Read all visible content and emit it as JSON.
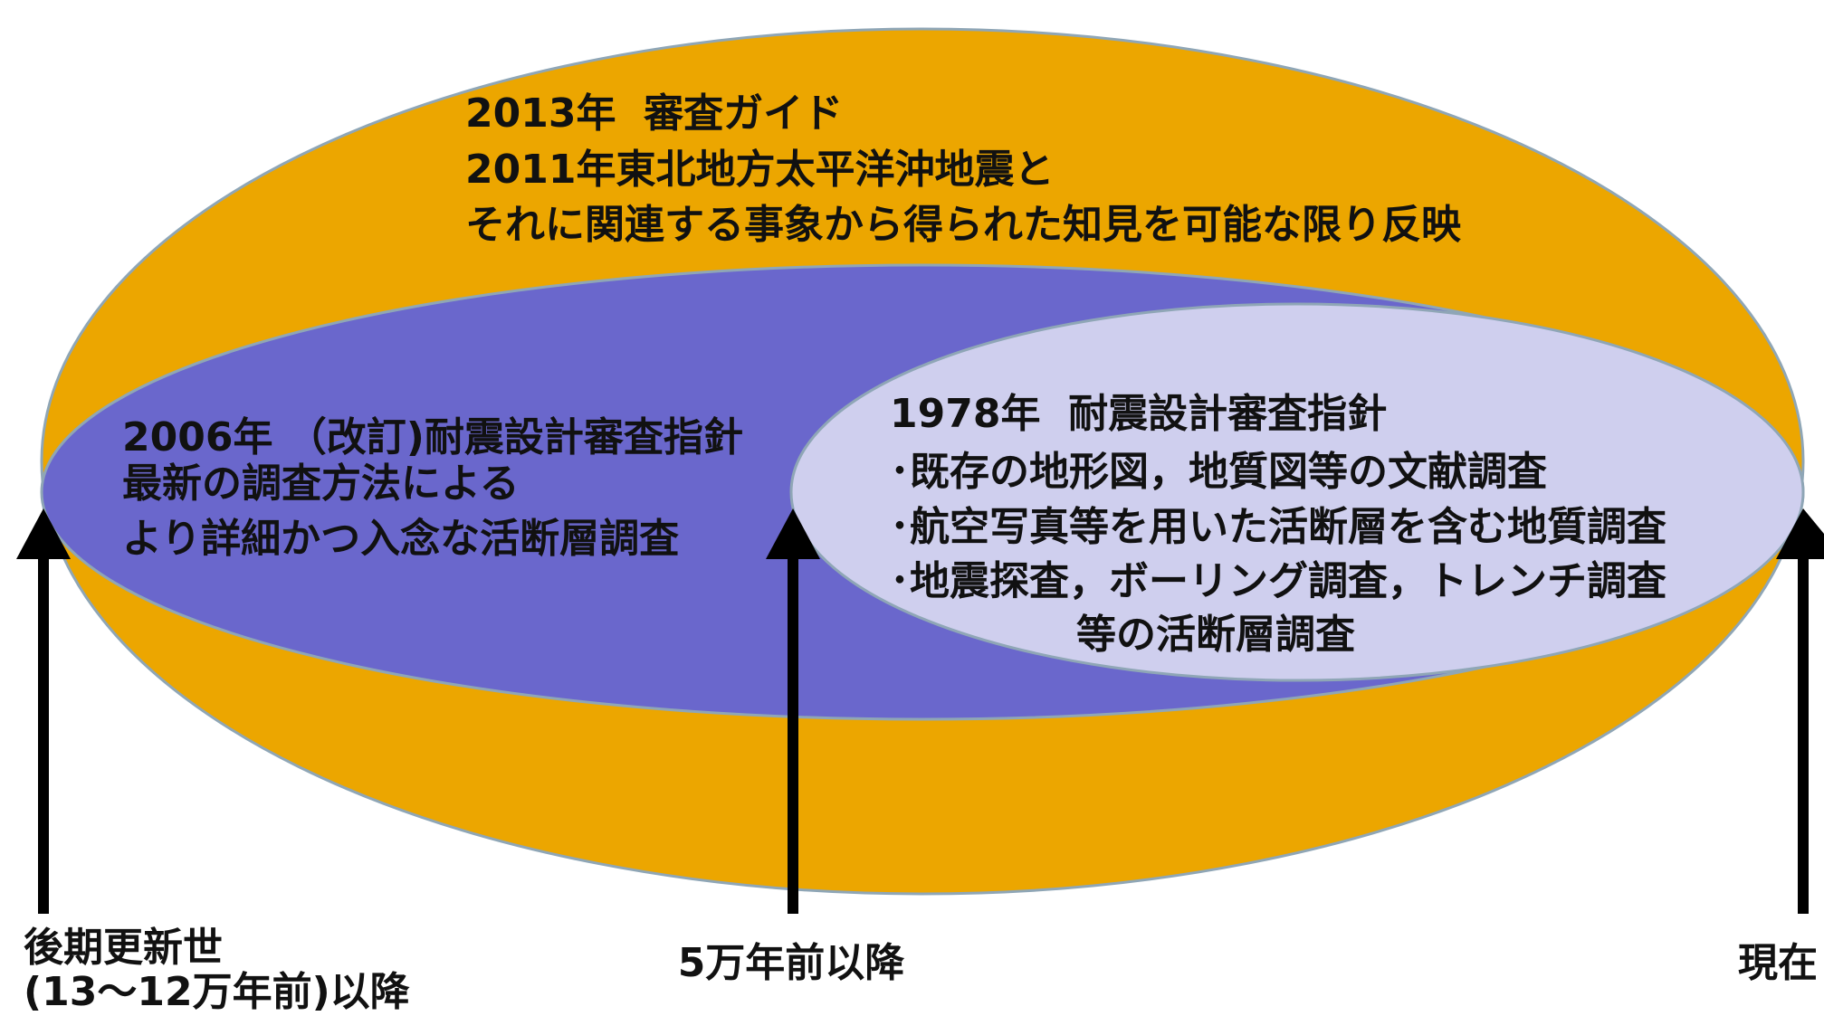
{
  "outer_ellipse": {
    "title": "2013年  審査ガイド",
    "lines": [
      "2011年東北地方太平洋沖地震と",
      "それに関連する事象から得られた知見を可能な限り反映"
    ]
  },
  "middle_ellipse": {
    "title": "2006年 （改訂)耐震設計審査指針",
    "lines": [
      "最新の調査方法による",
      "より詳細かつ入念な活断層調査"
    ]
  },
  "inner_ellipse": {
    "title": "1978年  耐震設計審査指針",
    "lines": [
      "･既存の地形図，地質図等の文献調査",
      "･航空写真等を用いた活断層を含む地質調査",
      "･地震探査，ボーリング調査，トレンチ調査",
      "等の活断層調査"
    ]
  },
  "timeline": {
    "start": [
      "後期更新世",
      "(13～12万年前)以降"
    ],
    "middle": "5万年前以降",
    "end": "現在"
  }
}
